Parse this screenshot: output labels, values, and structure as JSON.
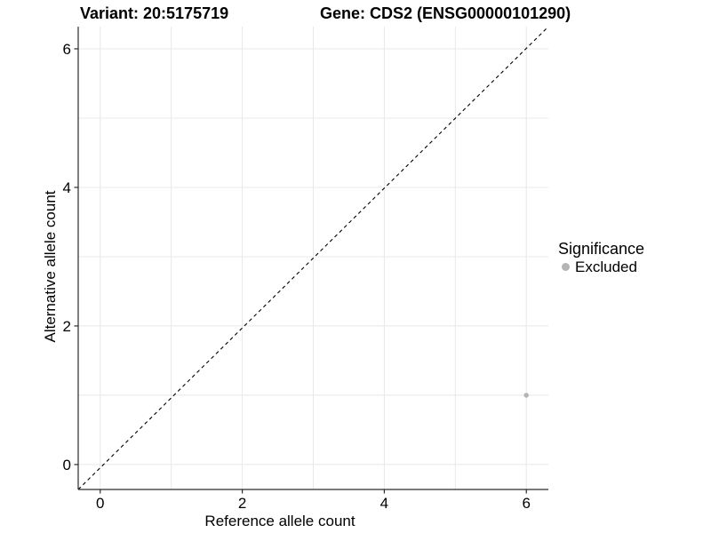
{
  "chart_data": {
    "type": "scatter",
    "title_variant": "Variant: 20:5175719",
    "title_gene": "Gene: CDS2 (ENSG00000101290)",
    "xlabel": "Reference allele count",
    "ylabel": "Alternative allele count",
    "xlim": [
      -0.31,
      6.31
    ],
    "ylim": [
      -0.36,
      6.32
    ],
    "x_ticks": [
      0,
      2,
      4,
      6
    ],
    "y_ticks": [
      0,
      2,
      4,
      6
    ],
    "grid_lines_x": [
      0,
      1,
      2,
      3,
      4,
      5,
      6
    ],
    "grid_lines_y": [
      0,
      1,
      2,
      3,
      4,
      5,
      6
    ],
    "grid": true,
    "identity_line": {
      "equation": "y = x",
      "style": "dashed",
      "color": "#000000"
    },
    "legend": {
      "title": "Significance",
      "position": "right",
      "entries": [
        {
          "label": "Excluded",
          "color": "#b5b5b5"
        }
      ]
    },
    "series": [
      {
        "name": "Excluded",
        "color": "#b5b5b5",
        "points": [
          {
            "x": 6,
            "y": 1
          }
        ]
      }
    ]
  },
  "colors": {
    "background": "#ffffff",
    "gridline": "#e8e8e8",
    "axis": "#2b2b2b",
    "text": "#000000",
    "excluded_point": "#b5b5b5"
  }
}
